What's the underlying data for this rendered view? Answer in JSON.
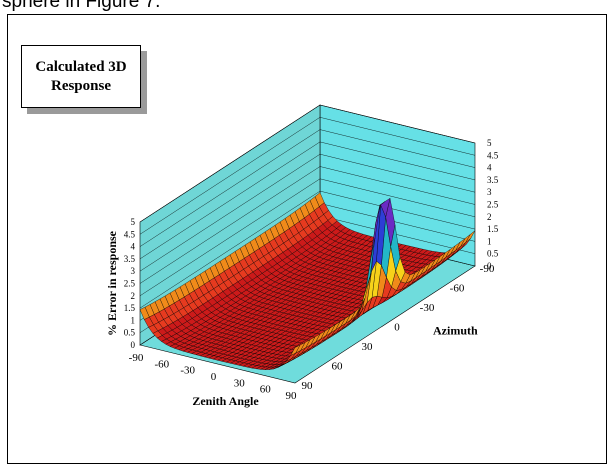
{
  "caption": "sphere in Figure 7.",
  "chart_data": {
    "type": "surface",
    "title": "Calculated 3D Response",
    "title_lines": [
      "Calculated 3D",
      "Response"
    ],
    "xlabel": "Zenith Angle",
    "ylabel": "Azimuth",
    "zlabel": "% Error in response",
    "x_ticks": [
      "-90",
      "-60",
      "-30",
      "0",
      "30",
      "60",
      "90"
    ],
    "y_ticks": [
      "-90",
      "-60",
      "-30",
      "0",
      "30",
      "60",
      "90"
    ],
    "z_ticks": [
      "0",
      "0.5",
      "1",
      "1.5",
      "2",
      "2.5",
      "3",
      "3.5",
      "4",
      "4.5",
      "5"
    ],
    "xlim": [
      -90,
      90
    ],
    "ylim": [
      -90,
      90
    ],
    "zlim": [
      0,
      5
    ],
    "grid": true,
    "surface_description_points": [
      {
        "zenith": -90,
        "azimuth": -90,
        "error": 1.2
      },
      {
        "zenith": -90,
        "azimuth": 90,
        "error": 1.4
      },
      {
        "zenith": -60,
        "azimuth": 0,
        "error": 0.3
      },
      {
        "zenith": 0,
        "azimuth": 0,
        "error": 0.0
      },
      {
        "zenith": 60,
        "azimuth": 0,
        "error": 0.3
      },
      {
        "zenith": 90,
        "azimuth": -90,
        "error": 1.0
      },
      {
        "zenith": 90,
        "azimuth": 90,
        "error": 1.0
      },
      {
        "zenith": 90,
        "azimuth": 0,
        "error": 5.0
      }
    ],
    "color_bands": [
      "#cc1a1a",
      "#e63a1f",
      "#f08a1a",
      "#f7d21a",
      "#21a84a",
      "#23b7c7",
      "#2d3ed6",
      "#6a2bc4"
    ]
  }
}
